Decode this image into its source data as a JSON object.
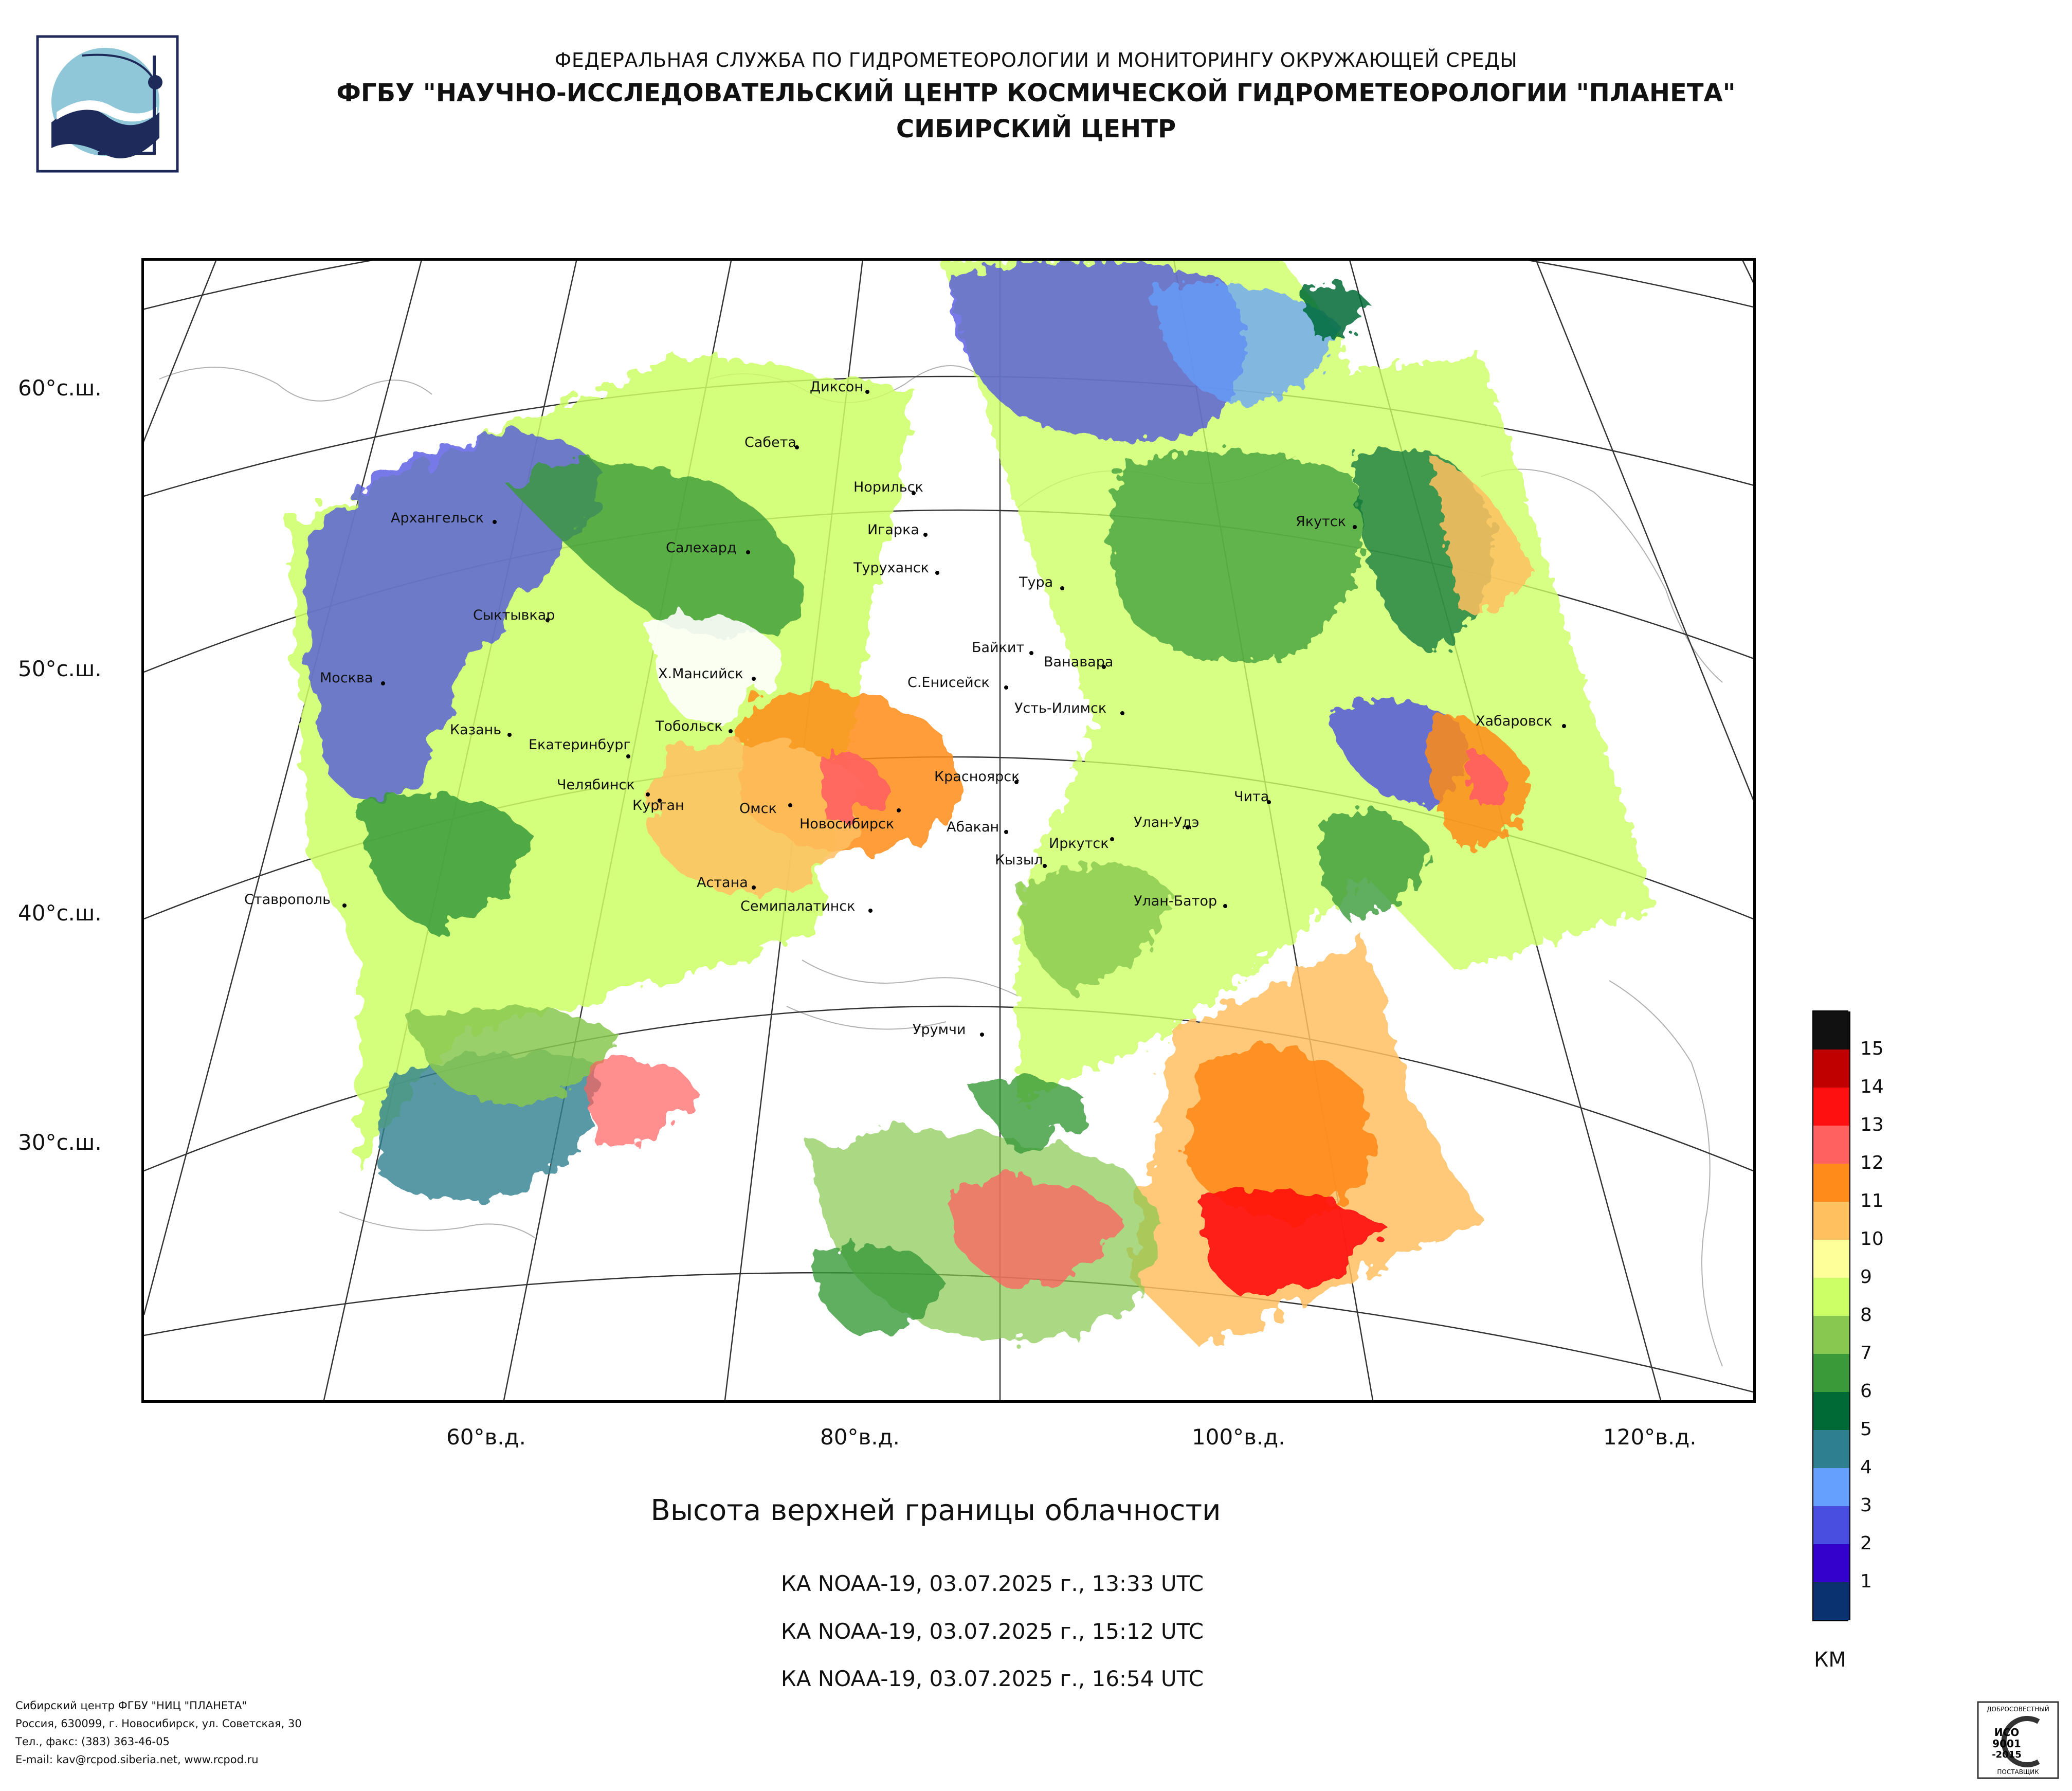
{
  "header": {
    "line1": "ФЕДЕРАЛЬНАЯ СЛУЖБА ПО ГИДРОМЕТЕОРОЛОГИИ И МОНИТОРИНГУ ОКРУЖАЮЩЕЙ СРЕДЫ",
    "line2": "ФГБУ \"НАУЧНО-ИССЛЕДОВАТЕЛЬСКИЙ ЦЕНТР КОСМИЧЕСКОЙ ГИДРОМЕТЕОРОЛОГИИ \"ПЛАНЕТА\"",
    "line3": "СИБИРСКИЙ ЦЕНТР"
  },
  "map": {
    "title": "Высота верхней границы облачности",
    "passes": [
      "КА NOAA-19, 03.07.2025 г., 13:33 UTC",
      "КА NOAA-19, 03.07.2025 г., 15:12 UTC",
      "КА NOAA-19, 03.07.2025 г., 16:54 UTC"
    ],
    "lat_labels": [
      "60°с.ш.",
      "50°с.ш.",
      "40°с.ш.",
      "30°с.ш."
    ],
    "lon_labels": [
      "60°в.д.",
      "80°в.д.",
      "100°в.д.",
      "120°в.д."
    ],
    "cities": [
      "Диксон",
      "Сабета",
      "Норильск",
      "Игарка",
      "Туруханск",
      "Салехард",
      "Архангельск",
      "Сыктывкар",
      "Москва",
      "Х.Мансийск",
      "Казань",
      "Екатеринбург",
      "Тобольск",
      "Челябинск",
      "Курган",
      "Омск",
      "Новосибирск",
      "Красноярск",
      "Абакан",
      "Кызыл",
      "Астана",
      "Семипалатинск",
      "Ставрополь",
      "Урумчи",
      "Якутск",
      "Тура",
      "Байкит",
      "Ванавара",
      "С.Енисейск",
      "Усть-Илимск",
      "Иркутск",
      "Улан-Удэ",
      "Чита",
      "Улан-Батор",
      "Хабаровск"
    ]
  },
  "legend": {
    "unit": "КМ",
    "levels": [
      {
        "label": "15",
        "color": "#111111"
      },
      {
        "label": "14",
        "color": "#c00000"
      },
      {
        "label": "13",
        "color": "#ff1010"
      },
      {
        "label": "12",
        "color": "#ff6060"
      },
      {
        "label": "11",
        "color": "#ff8c1a"
      },
      {
        "label": "10",
        "color": "#ffc060"
      },
      {
        "label": "9",
        "color": "#ffff99"
      },
      {
        "label": "8",
        "color": "#ccff66"
      },
      {
        "label": "7",
        "color": "#88c850"
      },
      {
        "label": "6",
        "color": "#3a9a3a"
      },
      {
        "label": "5",
        "color": "#006a36"
      },
      {
        "label": "4",
        "color": "#2e8090"
      },
      {
        "label": "3",
        "color": "#66a0ff"
      },
      {
        "label": "2",
        "color": "#4a4ee0"
      },
      {
        "label": "1",
        "color": "#3300cc"
      },
      {
        "label": "",
        "color": "#0a3270"
      }
    ]
  },
  "footer": {
    "line1": "Сибирский центр ФГБУ \"НИЦ \"ПЛАНЕТА\"",
    "line2": "Россия, 630099, г. Новосибирск, ул. Советская, 30",
    "line3": "Тел., факс: (383) 363-46-05",
    "line4": "E-mail: kav@rcpod.siberia.net, www.rcpod.ru"
  },
  "badge": {
    "top": "ДОБРОСОВЕСТНЫЙ",
    "line1": "ИСО",
    "line2": "9001",
    "line3": "-2015",
    "bottom": "ПОСТАВЩИК"
  }
}
